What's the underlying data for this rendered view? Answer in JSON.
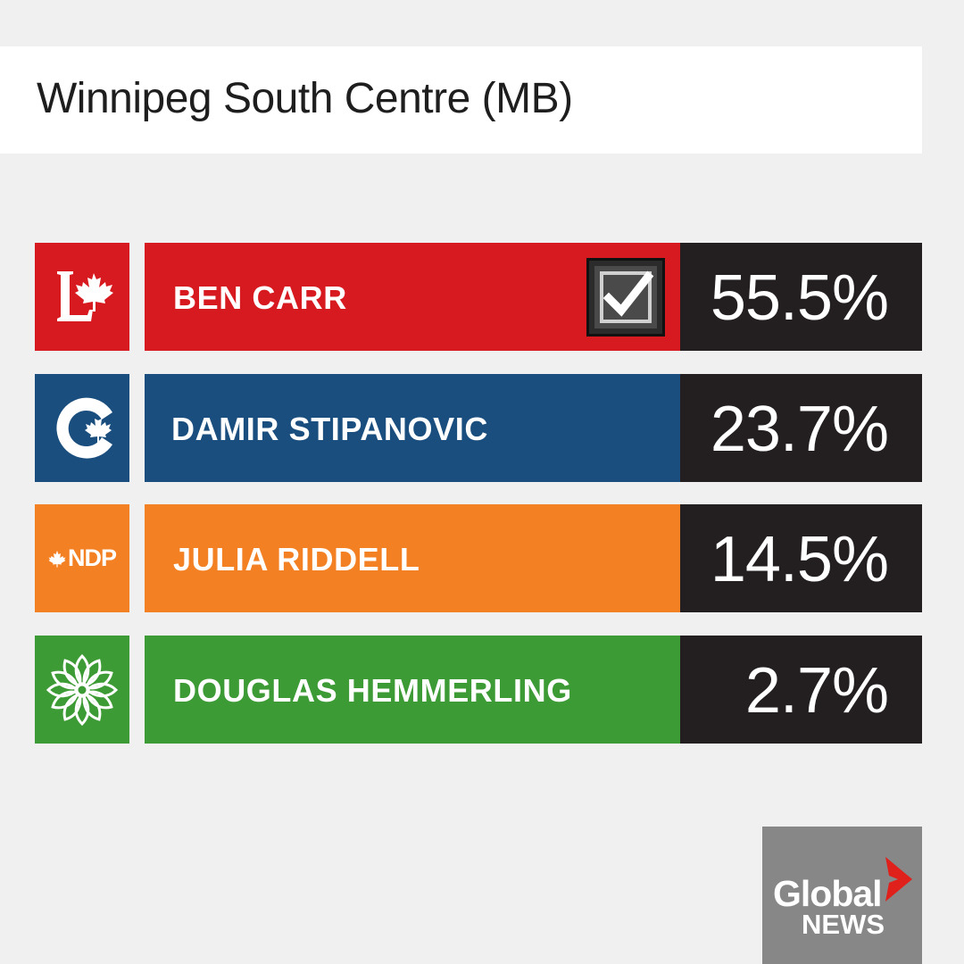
{
  "header": {
    "title": "Winnipeg South Centre (MB)"
  },
  "chart_data": {
    "type": "bar",
    "title": "Winnipeg South Centre (MB)",
    "categories": [
      "BEN CARR",
      "DAMIR STIPANOVIC",
      "JULIA RIDDELL",
      "DOUGLAS HEMMERLING"
    ],
    "values": [
      55.5,
      23.7,
      14.5,
      2.7
    ],
    "unit": "%",
    "rows": [
      {
        "party_icon": "liberal-logo-icon",
        "candidate": "BEN CARR",
        "percent_label": "55.5%",
        "value": 55.5,
        "color": "#d71920",
        "elected": true
      },
      {
        "party_icon": "conservative-logo-icon",
        "candidate": "DAMIR STIPANOVIC",
        "percent_label": "23.7%",
        "value": 23.7,
        "color": "#1a4e7e",
        "elected": false
      },
      {
        "party_icon": "ndp-logo-icon",
        "party_text": "NDP",
        "candidate": "JULIA RIDDELL",
        "percent_label": "14.5%",
        "value": 14.5,
        "color": "#f48024",
        "elected": false
      },
      {
        "party_icon": "green-logo-icon",
        "candidate": "DOUGLAS HEMMERLING",
        "percent_label": "2.7%",
        "value": 2.7,
        "color": "#3d9b35",
        "elected": false
      }
    ]
  },
  "branding": {
    "line1": "Global",
    "line2": "NEWS",
    "accent": "#e0201b",
    "icon": "global-news-logo-icon"
  }
}
